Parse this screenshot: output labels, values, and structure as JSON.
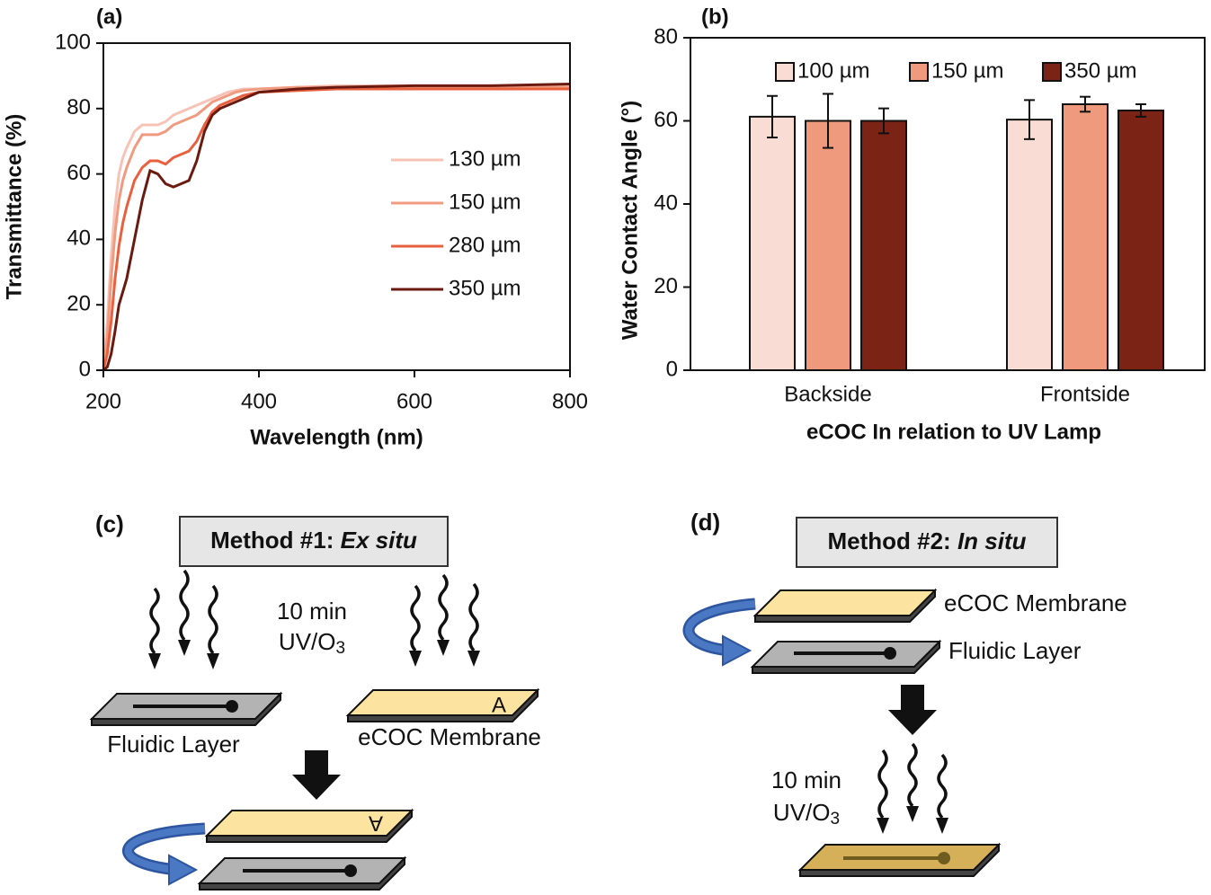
{
  "chart_data": [
    {
      "type": "line",
      "panel": "(a)",
      "xlabel": "Wavelength (nm)",
      "ylabel": "Transmittance (%)",
      "x": [
        200,
        205,
        210,
        215,
        220,
        225,
        230,
        240,
        250,
        260,
        270,
        280,
        290,
        300,
        310,
        320,
        330,
        340,
        350,
        360,
        370,
        380,
        400,
        450,
        500,
        600,
        700,
        800
      ],
      "series": [
        {
          "name": "130 µm",
          "color": "#f6c3b6",
          "values": [
            2,
            15,
            35,
            50,
            60,
            65,
            68,
            73,
            75,
            75,
            75,
            76,
            78,
            79,
            80,
            81,
            82,
            83,
            84,
            85,
            85.5,
            86,
            86,
            86.5,
            87,
            87,
            87,
            87
          ]
        },
        {
          "name": "150 µm",
          "color": "#f09a80",
          "values": [
            1,
            10,
            28,
            42,
            52,
            58,
            62,
            68,
            72,
            72,
            72,
            73,
            75,
            76,
            77,
            78,
            80,
            82,
            83,
            84,
            85,
            85.5,
            86,
            86.5,
            86.5,
            86.5,
            86.5,
            86.5
          ]
        },
        {
          "name": "280 µm",
          "color": "#e8603e",
          "values": [
            0,
            5,
            15,
            28,
            38,
            45,
            50,
            58,
            62,
            64,
            64,
            63,
            65,
            66,
            67,
            70,
            75,
            79,
            81,
            82,
            83,
            84,
            85,
            85.5,
            86,
            86,
            86,
            86
          ]
        },
        {
          "name": "350 µm",
          "color": "#6b1a10",
          "values": [
            0,
            1,
            5,
            12,
            20,
            24,
            28,
            40,
            52,
            61,
            60,
            57,
            56,
            57,
            58,
            64,
            73,
            78,
            80,
            81,
            82,
            83,
            85,
            86,
            86.5,
            87,
            87,
            87.5
          ]
        }
      ],
      "xlim": [
        200,
        800
      ],
      "xticks": [
        200,
        400,
        600,
        800
      ],
      "ylim": [
        0,
        100
      ],
      "yticks": [
        0,
        20,
        40,
        60,
        80,
        100
      ],
      "legend": "center right"
    },
    {
      "type": "bar",
      "panel": "(b)",
      "xlabel": "eCOC In relation to UV Lamp",
      "ylabel": "Water Contact Angle (°)",
      "categories": [
        "Backside",
        "Frontside"
      ],
      "series": [
        {
          "name": "100 µm",
          "color": "#f9dcd4",
          "values": [
            61,
            60.3
          ],
          "errors": [
            5,
            4.7
          ]
        },
        {
          "name": "150 µm",
          "color": "#ef9a7d",
          "values": [
            60,
            64
          ],
          "errors": [
            6.5,
            1.8
          ]
        },
        {
          "name": "350 µm",
          "color": "#7b2315",
          "values": [
            60,
            62.5
          ],
          "errors": [
            3,
            1.5
          ]
        }
      ],
      "ylim": [
        0,
        80
      ],
      "yticks": [
        0,
        20,
        40,
        60,
        80
      ],
      "legend": "top"
    }
  ],
  "diagrams": {
    "c": {
      "panel": "(c)",
      "method": "Method #1:",
      "method_italic": "Ex situ",
      "time": "10 min",
      "treatment": "UV/O",
      "treatment_sub": "3",
      "fluidic": "Fluidic Layer",
      "membrane": "eCOC Membrane",
      "mark": "A"
    },
    "d": {
      "panel": "(d)",
      "method": "Method #2:",
      "method_italic": "In situ",
      "membrane": "eCOC Membrane",
      "fluidic": "Fluidic Layer",
      "time": "10 min",
      "treatment": "UV/O",
      "treatment_sub": "3"
    }
  }
}
